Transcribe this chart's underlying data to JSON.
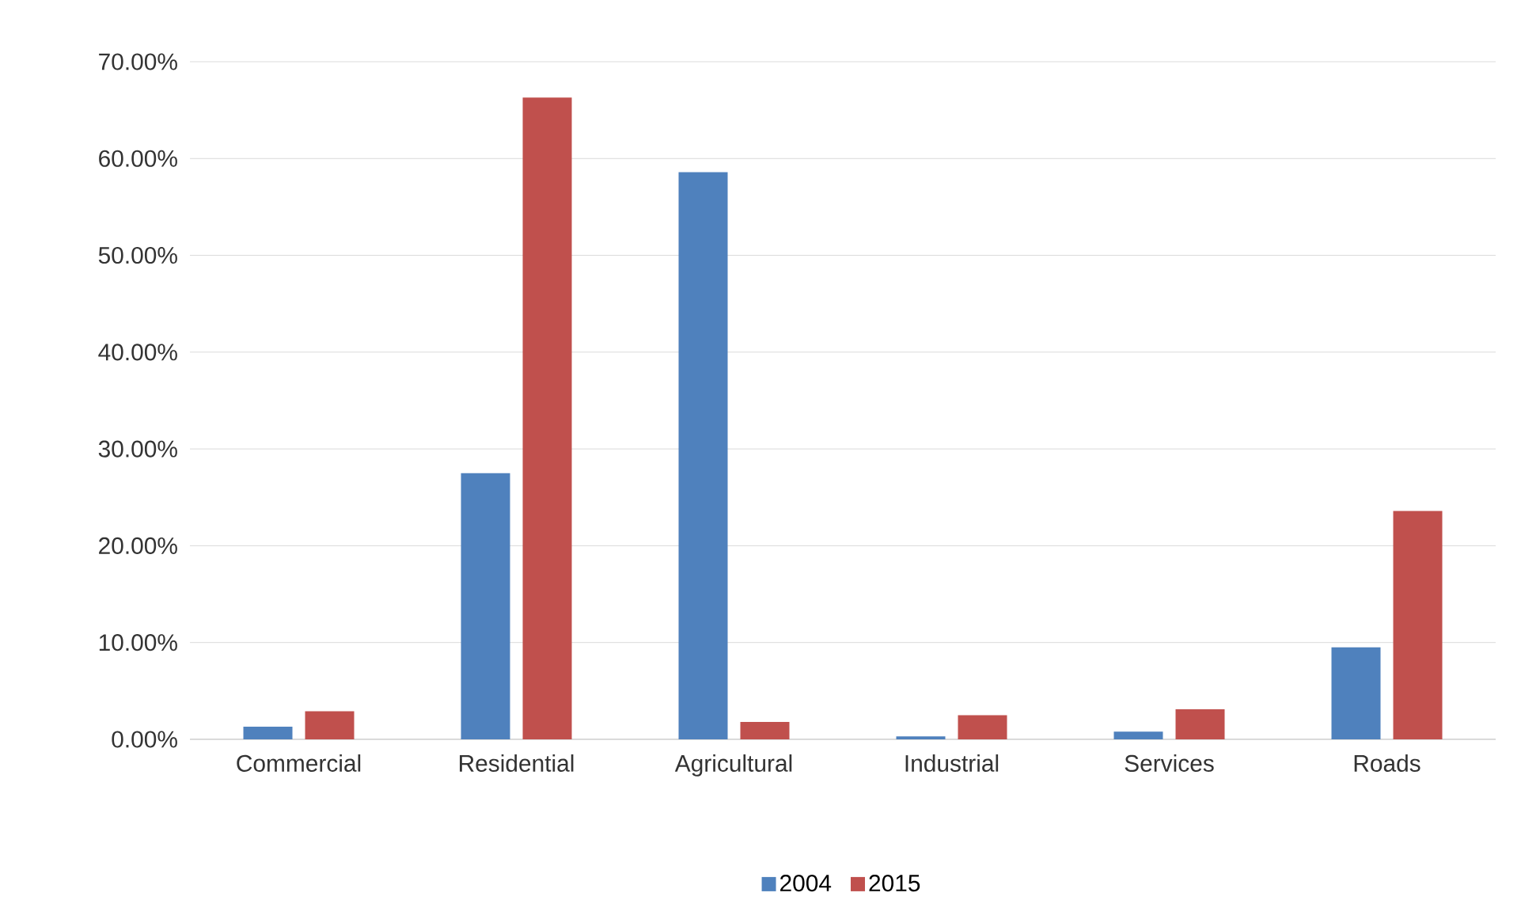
{
  "chart_data": {
    "type": "bar",
    "categories": [
      "Commercial",
      "Residential",
      "Agricultural",
      "Industrial",
      "Services",
      "Roads"
    ],
    "series": [
      {
        "name": "2004",
        "color": "#4f81bd",
        "values": [
          1.3,
          27.5,
          58.6,
          0.3,
          0.8,
          9.5
        ]
      },
      {
        "name": "2015",
        "color": "#c0504d",
        "values": [
          2.9,
          66.3,
          1.8,
          2.5,
          3.1,
          23.6
        ]
      }
    ],
    "ylim": [
      0,
      70
    ],
    "yticks": [
      {
        "value": 0,
        "label": "0.00%"
      },
      {
        "value": 10,
        "label": "10.00%"
      },
      {
        "value": 20,
        "label": "20.00%"
      },
      {
        "value": 30,
        "label": "30.00%"
      },
      {
        "value": 40,
        "label": "40.00%"
      },
      {
        "value": 50,
        "label": "50.00%"
      },
      {
        "value": 60,
        "label": "60.00%"
      },
      {
        "value": 70,
        "label": "70.00%"
      }
    ],
    "grid": "y",
    "legend": "bottom"
  }
}
